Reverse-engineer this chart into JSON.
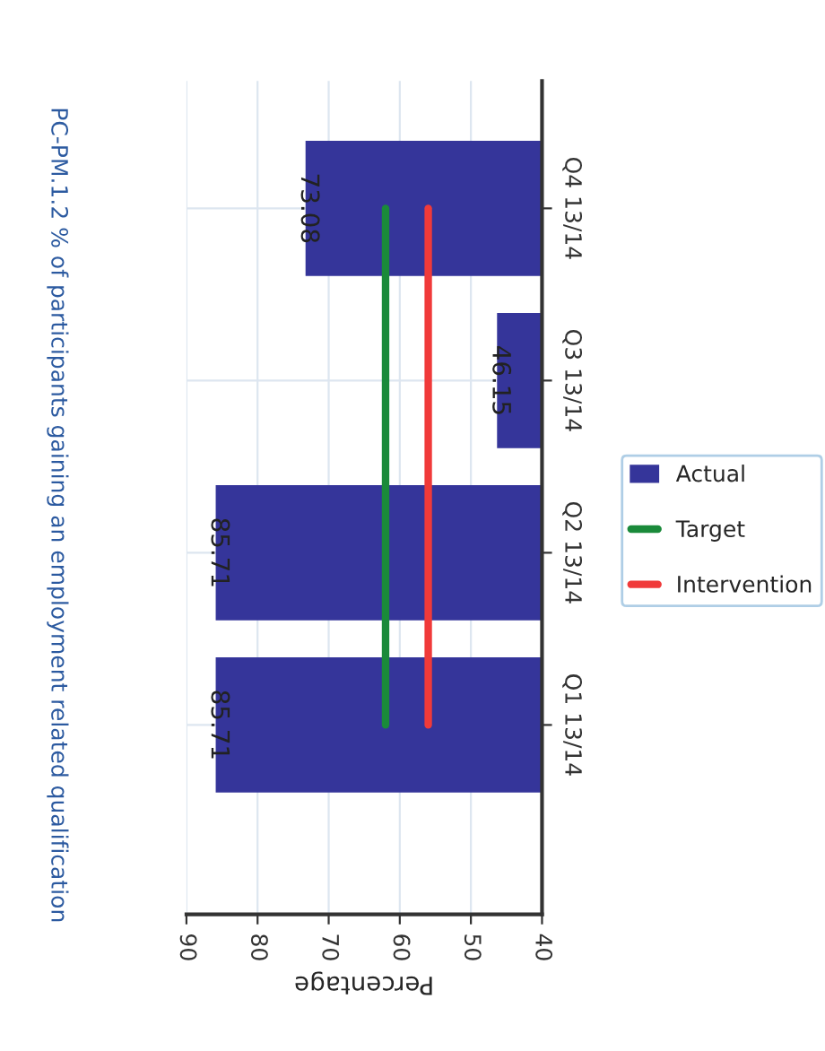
{
  "chart_data": {
    "type": "bar",
    "orientation": "horizontal",
    "title": "PC-PM.1.2 % of participants gaining an employment related qualification",
    "xlabel": "Percentage",
    "categories": [
      "Q4 13/14",
      "Q3 13/14",
      "Q2 13/14",
      "Q1 13/14"
    ],
    "series": [
      {
        "name": "Actual",
        "color": "#35359a",
        "values": [
          73.08,
          46.15,
          85.71,
          85.71
        ],
        "value_labels": [
          "73.08",
          "46.15",
          "85.71",
          "85.71"
        ]
      },
      {
        "name": "Target",
        "type": "line",
        "color": "#1a8a3a",
        "values": [
          62,
          62,
          62,
          62
        ]
      },
      {
        "name": "Intervention",
        "type": "line",
        "color": "#f03a3a",
        "values": [
          56,
          56,
          56,
          56
        ]
      }
    ],
    "xlim": [
      90,
      40
    ],
    "xticks": [
      90,
      80,
      70,
      60,
      50,
      40
    ],
    "grid": true,
    "legend": "right",
    "marker": "none",
    "line_style": "solid"
  }
}
